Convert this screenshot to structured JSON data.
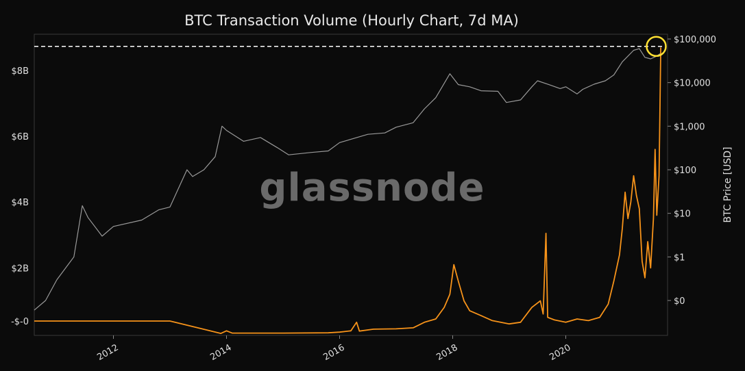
{
  "chart_data": {
    "type": "line",
    "title": "BTC Transaction Volume (Hourly Chart, 7d MA)",
    "watermark": "glassnode",
    "xlabel": "",
    "left_axis": {
      "label": "",
      "tick_values": [
        0,
        2,
        4,
        6,
        8
      ],
      "tick_labels": [
        "-$-0",
        "$2B",
        "$4B",
        "$6B",
        "$8B"
      ],
      "unit": "USD billions",
      "range": [
        -0.05,
        9.1
      ]
    },
    "right_axis": {
      "label": "BTC Price [USD]",
      "scale": "log",
      "tick_labels": [
        "$0",
        "$1",
        "$10",
        "$100",
        "$1,000",
        "$10,000",
        "$100,000"
      ],
      "tick_values": [
        0.1,
        1,
        10,
        100,
        1000,
        10000,
        100000
      ]
    },
    "x_axis": {
      "range": [
        2010.6,
        2021.8
      ],
      "tick_values": [
        2012,
        2014,
        2016,
        2018,
        2020
      ],
      "tick_labels": [
        "2012",
        "2014",
        "2016",
        "2018",
        "2020"
      ]
    },
    "grid": false,
    "reference_line": {
      "axis": "left",
      "value": 8.73,
      "style": "dashed",
      "color": "#ffffff"
    },
    "highlight_circle": {
      "x": 2021.6,
      "y_left": 8.73,
      "color": "#ffe033"
    },
    "series": [
      {
        "name": "",
        "axis": "left",
        "color": "#f7931a",
        "points": [
          [
            2010.6,
            0.0
          ],
          [
            2011.0,
            0.0
          ],
          [
            2012.0,
            0.0
          ],
          [
            2013.0,
            0.0
          ],
          [
            2013.9,
            0.01
          ],
          [
            2014.0,
            0.09
          ],
          [
            2014.1,
            0.02
          ],
          [
            2015.0,
            0.02
          ],
          [
            2015.8,
            0.03
          ],
          [
            2016.0,
            0.05
          ],
          [
            2016.2,
            0.09
          ],
          [
            2016.3,
            0.35
          ],
          [
            2016.35,
            0.08
          ],
          [
            2016.6,
            0.14
          ],
          [
            2017.0,
            0.15
          ],
          [
            2017.3,
            0.18
          ],
          [
            2017.5,
            0.35
          ],
          [
            2017.7,
            0.45
          ],
          [
            2017.85,
            0.8
          ],
          [
            2017.95,
            1.2
          ],
          [
            2018.02,
            2.1
          ],
          [
            2018.1,
            1.6
          ],
          [
            2018.2,
            1.0
          ],
          [
            2018.3,
            0.7
          ],
          [
            2018.5,
            0.55
          ],
          [
            2018.7,
            0.4
          ],
          [
            2019.0,
            0.3
          ],
          [
            2019.2,
            0.35
          ],
          [
            2019.4,
            0.8
          ],
          [
            2019.55,
            1.0
          ],
          [
            2019.6,
            0.6
          ],
          [
            2019.65,
            3.05
          ],
          [
            2019.68,
            0.5
          ],
          [
            2019.8,
            0.42
          ],
          [
            2020.0,
            0.35
          ],
          [
            2020.2,
            0.45
          ],
          [
            2020.4,
            0.4
          ],
          [
            2020.6,
            0.5
          ],
          [
            2020.75,
            0.9
          ],
          [
            2020.85,
            1.6
          ],
          [
            2020.95,
            2.4
          ],
          [
            2021.0,
            3.2
          ],
          [
            2021.05,
            4.3
          ],
          [
            2021.1,
            3.5
          ],
          [
            2021.15,
            4.0
          ],
          [
            2021.2,
            4.8
          ],
          [
            2021.25,
            4.2
          ],
          [
            2021.3,
            3.8
          ],
          [
            2021.35,
            2.2
          ],
          [
            2021.4,
            1.7
          ],
          [
            2021.45,
            2.8
          ],
          [
            2021.5,
            2.0
          ],
          [
            2021.55,
            3.5
          ],
          [
            2021.58,
            5.6
          ],
          [
            2021.61,
            3.6
          ],
          [
            2021.65,
            4.8
          ],
          [
            2021.68,
            8.7
          ]
        ]
      },
      {
        "name": "",
        "axis": "right",
        "color": "#9a9a9a",
        "points": [
          [
            2010.6,
            0.06
          ],
          [
            2010.8,
            0.1
          ],
          [
            2011.0,
            0.3
          ],
          [
            2011.3,
            1.0
          ],
          [
            2011.45,
            15
          ],
          [
            2011.55,
            8
          ],
          [
            2011.8,
            3
          ],
          [
            2012.0,
            5
          ],
          [
            2012.5,
            7
          ],
          [
            2012.8,
            12
          ],
          [
            2013.0,
            14
          ],
          [
            2013.3,
            100
          ],
          [
            2013.4,
            70
          ],
          [
            2013.6,
            100
          ],
          [
            2013.8,
            200
          ],
          [
            2013.92,
            1000
          ],
          [
            2014.0,
            800
          ],
          [
            2014.3,
            450
          ],
          [
            2014.6,
            550
          ],
          [
            2014.9,
            320
          ],
          [
            2015.1,
            220
          ],
          [
            2015.5,
            250
          ],
          [
            2015.8,
            270
          ],
          [
            2016.0,
            420
          ],
          [
            2016.5,
            650
          ],
          [
            2016.8,
            700
          ],
          [
            2017.0,
            950
          ],
          [
            2017.3,
            1200
          ],
          [
            2017.5,
            2500
          ],
          [
            2017.7,
            4500
          ],
          [
            2017.95,
            16000
          ],
          [
            2018.1,
            9000
          ],
          [
            2018.3,
            8000
          ],
          [
            2018.5,
            6500
          ],
          [
            2018.8,
            6300
          ],
          [
            2018.95,
            3500
          ],
          [
            2019.2,
            4000
          ],
          [
            2019.4,
            8000
          ],
          [
            2019.5,
            11000
          ],
          [
            2019.7,
            9000
          ],
          [
            2019.9,
            7300
          ],
          [
            2020.0,
            8000
          ],
          [
            2020.2,
            5500
          ],
          [
            2020.3,
            7000
          ],
          [
            2020.5,
            9200
          ],
          [
            2020.7,
            11000
          ],
          [
            2020.85,
            15000
          ],
          [
            2021.0,
            30000
          ],
          [
            2021.2,
            55000
          ],
          [
            2021.3,
            60000
          ],
          [
            2021.4,
            38000
          ],
          [
            2021.5,
            35000
          ],
          [
            2021.6,
            40000
          ],
          [
            2021.68,
            47000
          ]
        ]
      }
    ]
  }
}
